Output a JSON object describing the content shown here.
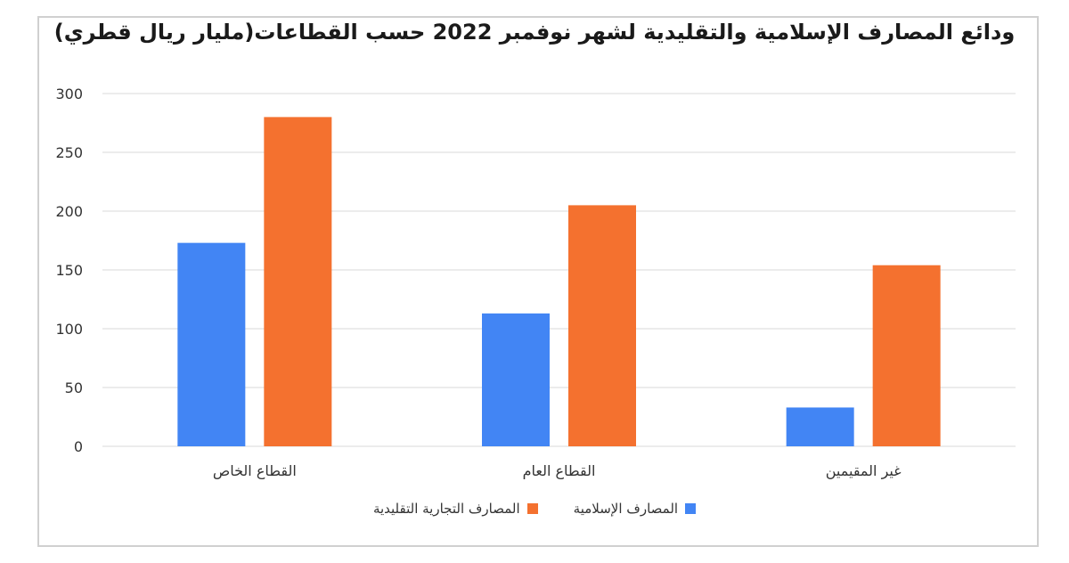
{
  "chart_data": {
    "type": "bar",
    "title": "ودائع المصارف الإسلامية والتقليدية لشهر نوفمبر 2022 حسب القطاعات(مليار ريال قطري)",
    "categories": [
      "القطاع الخاص",
      "القطاع العام",
      "غير المقيمين"
    ],
    "series": [
      {
        "name": "المصارف الإسلامية",
        "color": "#4285f4",
        "values": [
          173,
          113,
          33
        ]
      },
      {
        "name": "المصارف التجارية التقليدية",
        "color": "#f4712f",
        "values": [
          280,
          205,
          154
        ]
      }
    ],
    "ylim": [
      0,
      300
    ],
    "yticks": [
      "0",
      "50",
      "100",
      "150",
      "200",
      "250",
      "300"
    ],
    "grid": true,
    "legend_position": "bottom",
    "xlabel": "",
    "ylabel": ""
  }
}
